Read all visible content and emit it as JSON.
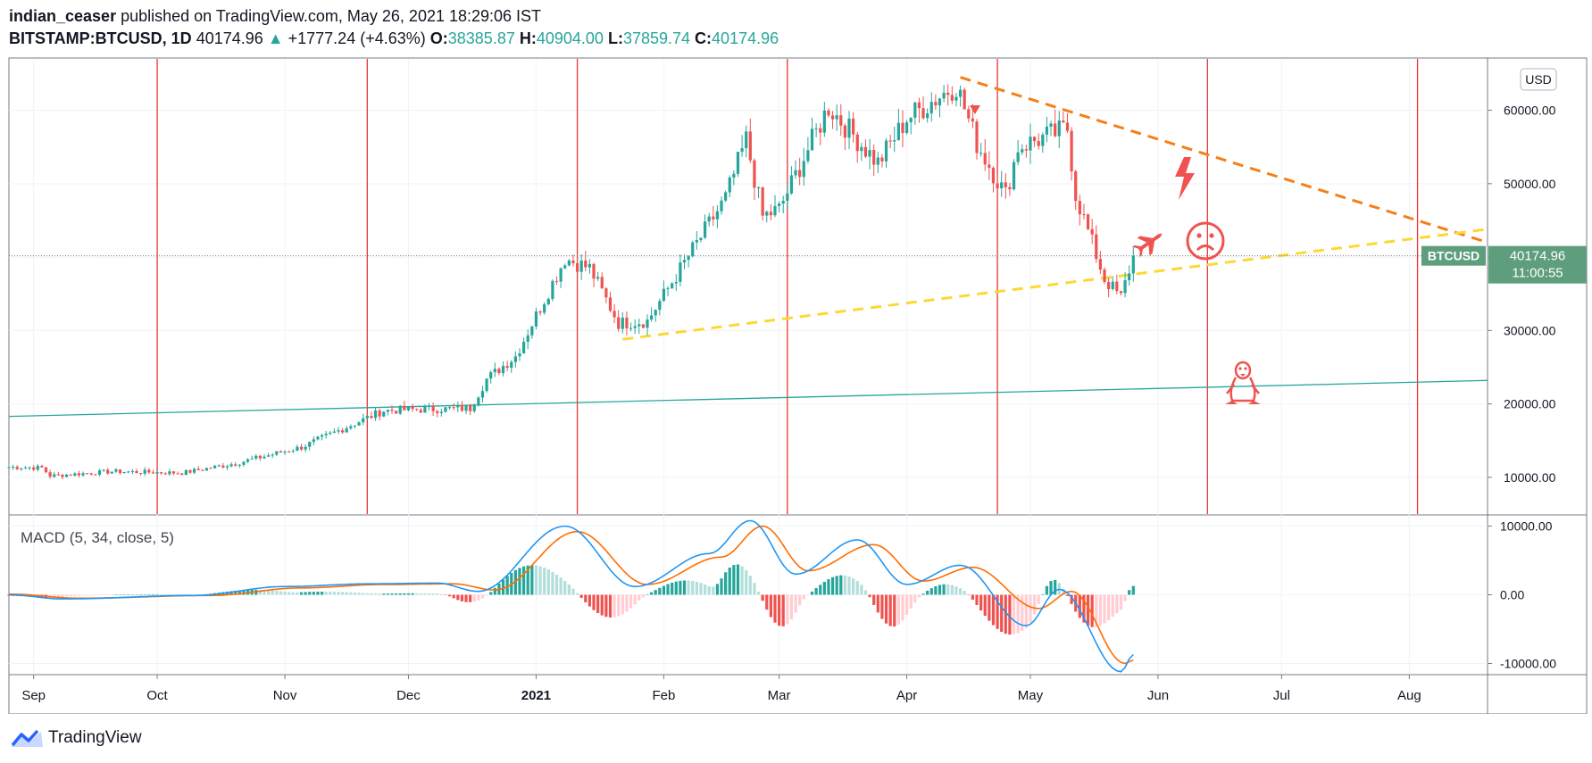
{
  "header": {
    "author": "indian_ceaser",
    "published_text": " published on TradingView.com, May 26, 2021 18:29:06 IST",
    "symbol": "BITSTAMP:BTCUSD, 1D",
    "last": "40174.96",
    "change": "+1777.24 (+4.63%)",
    "o_label": "O:",
    "o_value": "38385.87",
    "h_label": "H:",
    "h_value": "40904.00",
    "l_label": "L:",
    "l_value": "37859.74",
    "c_label": "C:",
    "c_value": "40174.96"
  },
  "price_pane": {
    "currency": "USD",
    "price_tag": "40174.96",
    "countdown": "11:00:55",
    "symbol_tag": "BTCUSD"
  },
  "macd_pane": {
    "title": "MACD (5, 34, close, 5)"
  },
  "brand": "TradingView",
  "colors": {
    "up": "#26a69a",
    "down": "#ef5350",
    "macd": "#2196f3",
    "signal": "#ff6d00",
    "vline": "#e53935",
    "tag": "#5e9e7d"
  },
  "chart_data": [
    {
      "type": "candlestick",
      "ylim": [
        5000,
        67000
      ],
      "y_ticks": [
        "60000.00",
        "50000.00",
        "40000.00",
        "30000.00",
        "20000.00",
        "10000.00"
      ],
      "x_ticks": [
        "Sep",
        "Oct",
        "Nov",
        "Dec",
        "2021",
        "Feb",
        "Mar",
        "Apr",
        "May",
        "Jun",
        "Jul",
        "Aug"
      ],
      "x_tick_dates": [
        "2020-09-01",
        "2020-10-01",
        "2020-11-01",
        "2020-12-01",
        "2021-01-01",
        "2021-02-01",
        "2021-03-01",
        "2021-04-01",
        "2021-05-01",
        "2021-06-01",
        "2021-07-01",
        "2021-08-01"
      ],
      "last_price": 40174.96,
      "anchors": [
        [
          "2020-08-26",
          11400
        ],
        [
          "2020-09-03",
          11300
        ],
        [
          "2020-09-05",
          10200
        ],
        [
          "2020-09-20",
          10800
        ],
        [
          "2020-10-07",
          10600
        ],
        [
          "2020-10-20",
          11900
        ],
        [
          "2020-11-05",
          14100
        ],
        [
          "2020-11-25",
          19100
        ],
        [
          "2020-12-01",
          19200
        ],
        [
          "2020-12-16",
          19400
        ],
        [
          "2020-12-20",
          23400
        ],
        [
          "2020-12-27",
          26500
        ],
        [
          "2021-01-08",
          39800
        ],
        [
          "2021-01-14",
          38500
        ],
        [
          "2021-01-21",
          31000
        ],
        [
          "2021-01-28",
          31300
        ],
        [
          "2021-02-08",
          41000
        ],
        [
          "2021-02-16",
          48000
        ],
        [
          "2021-02-21",
          56000
        ],
        [
          "2021-02-25",
          45500
        ],
        [
          "2021-03-01",
          46500
        ],
        [
          "2021-03-13",
          60500
        ],
        [
          "2021-03-25",
          52800
        ],
        [
          "2021-04-01",
          58900
        ],
        [
          "2021-04-13",
          63500
        ],
        [
          "2021-04-18",
          55500
        ],
        [
          "2021-04-25",
          48500
        ],
        [
          "2021-04-28",
          55000
        ],
        [
          "2021-05-10",
          57500
        ],
        [
          "2021-05-12",
          48500
        ],
        [
          "2021-05-19",
          37000
        ],
        [
          "2021-05-23",
          34500
        ],
        [
          "2021-05-26",
          40174.96
        ]
      ],
      "vertical_lines": [
        "2020-10-01",
        "2020-11-21",
        "2021-01-11",
        "2021-03-03",
        "2021-04-23",
        "2021-06-13",
        "2021-08-03"
      ],
      "trendlines": [
        {
          "name": "descending resistance",
          "color": "#f57f17",
          "dash": true,
          "from": [
            "2021-04-14",
            64500
          ],
          "to": [
            "2021-08-20",
            42000
          ]
        },
        {
          "name": "ascending support",
          "color": "#fdd835",
          "dash": true,
          "from": [
            "2021-01-22",
            28800
          ],
          "to": [
            "2021-08-20",
            43800
          ]
        },
        {
          "name": "long-term trend",
          "color": "#26a69a",
          "dash": false,
          "from": [
            "2020-08-26",
            18300
          ],
          "to": [
            "2021-08-20",
            23200
          ]
        }
      ]
    },
    {
      "type": "line",
      "ylim": [
        -11500,
        11500
      ],
      "y_ticks": [
        "10000.00",
        "0.00",
        "-10000.00"
      ],
      "series": [
        {
          "color": "#2196f3",
          "values": [
            [
              "2020-08-26",
              0
            ],
            [
              "2020-09-08",
              -600
            ],
            [
              "2020-10-10",
              -100
            ],
            [
              "2020-11-01",
              1200
            ],
            [
              "2020-11-22",
              1600
            ],
            [
              "2020-12-08",
              1700
            ],
            [
              "2020-12-18",
              500
            ],
            [
              "2021-01-08",
              10000
            ],
            [
              "2021-01-25",
              1200
            ],
            [
              "2021-02-12",
              6000
            ],
            [
              "2021-02-22",
              10800
            ],
            [
              "2021-03-05",
              3000
            ],
            [
              "2021-03-20",
              8000
            ],
            [
              "2021-04-01",
              1500
            ],
            [
              "2021-04-14",
              4300
            ],
            [
              "2021-04-30",
              -4500
            ],
            [
              "2021-05-08",
              800
            ],
            [
              "2021-05-23",
              -11200
            ],
            [
              "2021-05-26",
              -8700
            ]
          ]
        },
        {
          "color": "#ff6d00",
          "values": [
            [
              "2020-08-26",
              100
            ],
            [
              "2020-09-12",
              -500
            ],
            [
              "2020-10-14",
              -100
            ],
            [
              "2020-11-05",
              1000
            ],
            [
              "2020-11-25",
              1500
            ],
            [
              "2020-12-12",
              1600
            ],
            [
              "2020-12-22",
              700
            ],
            [
              "2021-01-11",
              9200
            ],
            [
              "2021-01-28",
              1500
            ],
            [
              "2021-02-15",
              5500
            ],
            [
              "2021-02-25",
              10000
            ],
            [
              "2021-03-08",
              3500
            ],
            [
              "2021-03-24",
              7300
            ],
            [
              "2021-04-05",
              2000
            ],
            [
              "2021-04-17",
              4000
            ],
            [
              "2021-05-03",
              -2000
            ],
            [
              "2021-05-11",
              500
            ],
            [
              "2021-05-24",
              -10000
            ],
            [
              "2021-05-26",
              -9500
            ]
          ]
        }
      ]
    }
  ]
}
